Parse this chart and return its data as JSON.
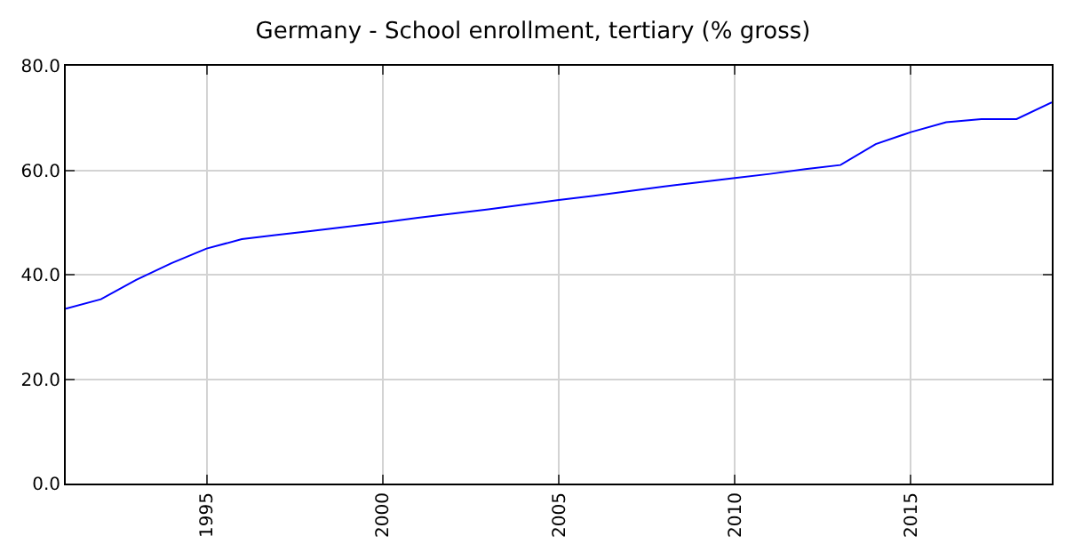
{
  "chart_data": {
    "type": "line",
    "title": "Germany - School enrollment, tertiary (% gross)",
    "x": [
      1991,
      1992,
      1993,
      1994,
      1995,
      1996,
      1997,
      1998,
      1999,
      2000,
      2001,
      2002,
      2003,
      2004,
      2005,
      2006,
      2007,
      2008,
      2009,
      2010,
      2011,
      2012,
      2013,
      2014,
      2015,
      2016,
      2017,
      2018,
      2019
    ],
    "series": [
      {
        "color": "#0000ff",
        "values": [
          33.5,
          35.3,
          39.0,
          42.2,
          45.0,
          46.8,
          47.6,
          48.4,
          49.2,
          50.0,
          50.9,
          51.7,
          52.5,
          53.4,
          54.3,
          55.1,
          56.0,
          56.9,
          57.7,
          58.5,
          59.3,
          60.2,
          61.0,
          65.0,
          67.3,
          69.2,
          69.8,
          69.8,
          73.0
        ]
      }
    ],
    "xlim": [
      1991,
      2019
    ],
    "xticks": [
      1995,
      2000,
      2005,
      2010,
      2015
    ],
    "ylim": [
      0,
      80
    ],
    "yticks": [
      {
        "value": 0,
        "label": "0.0"
      },
      {
        "value": 20,
        "label": "20.0"
      },
      {
        "value": 40,
        "label": "40.0"
      },
      {
        "value": 60,
        "label": "60.0"
      },
      {
        "value": 80,
        "label": "80.0"
      }
    ],
    "grid": true,
    "marker": "none",
    "line_style": "solid"
  }
}
